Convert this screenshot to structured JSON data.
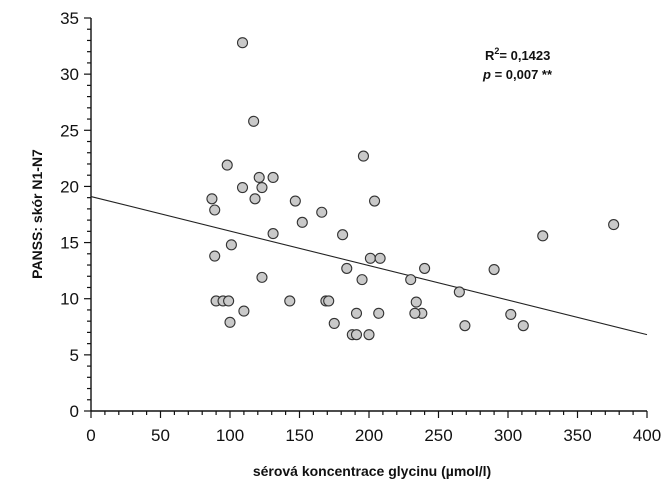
{
  "chart_data": {
    "type": "scatter",
    "xlabel": "sérová koncentrace glycinu (µmol/l)",
    "ylabel": "PANSS: skór N1-N7",
    "xlim": [
      0,
      400
    ],
    "ylim": [
      0,
      35
    ],
    "xticks": [
      "0",
      "50",
      "100",
      "150",
      "200",
      "250",
      "300",
      "350",
      "400"
    ],
    "yticks": [
      "0",
      "5",
      "10",
      "15",
      "20",
      "25",
      "30",
      "35"
    ],
    "grid": false,
    "annotations": {
      "r2_prefix": "R",
      "r2_sup": "2",
      "r2_value": "= 0,1423",
      "p_label": "p",
      "p_value": " = 0,007 **"
    },
    "trendline": {
      "x0": 0,
      "y0": 19.1,
      "x1": 400,
      "y1": 6.8
    },
    "points": [
      {
        "x": 109,
        "y": 32.8
      },
      {
        "x": 117,
        "y": 25.8
      },
      {
        "x": 98,
        "y": 21.9
      },
      {
        "x": 87,
        "y": 18.9
      },
      {
        "x": 89,
        "y": 17.9
      },
      {
        "x": 109,
        "y": 19.9
      },
      {
        "x": 121,
        "y": 20.8
      },
      {
        "x": 123,
        "y": 19.9
      },
      {
        "x": 118,
        "y": 18.9
      },
      {
        "x": 131,
        "y": 20.8
      },
      {
        "x": 147,
        "y": 18.7
      },
      {
        "x": 166,
        "y": 17.7
      },
      {
        "x": 196,
        "y": 22.7
      },
      {
        "x": 204,
        "y": 18.7
      },
      {
        "x": 101,
        "y": 14.8
      },
      {
        "x": 89,
        "y": 13.8
      },
      {
        "x": 131,
        "y": 15.8
      },
      {
        "x": 152,
        "y": 16.8
      },
      {
        "x": 181,
        "y": 15.7
      },
      {
        "x": 201,
        "y": 13.6
      },
      {
        "x": 208,
        "y": 13.6
      },
      {
        "x": 123,
        "y": 11.9
      },
      {
        "x": 184,
        "y": 12.7
      },
      {
        "x": 195,
        "y": 11.7
      },
      {
        "x": 90,
        "y": 9.8
      },
      {
        "x": 95,
        "y": 9.8
      },
      {
        "x": 99,
        "y": 9.8
      },
      {
        "x": 100,
        "y": 7.9
      },
      {
        "x": 110,
        "y": 8.9
      },
      {
        "x": 143,
        "y": 9.8
      },
      {
        "x": 169,
        "y": 9.8
      },
      {
        "x": 171,
        "y": 9.8
      },
      {
        "x": 175,
        "y": 7.8
      },
      {
        "x": 191,
        "y": 8.7
      },
      {
        "x": 188,
        "y": 6.8
      },
      {
        "x": 191,
        "y": 6.8
      },
      {
        "x": 200,
        "y": 6.8
      },
      {
        "x": 207,
        "y": 8.7
      },
      {
        "x": 230,
        "y": 11.7
      },
      {
        "x": 234,
        "y": 9.7
      },
      {
        "x": 238,
        "y": 8.7
      },
      {
        "x": 233,
        "y": 8.7
      },
      {
        "x": 240,
        "y": 12.7
      },
      {
        "x": 265,
        "y": 10.6
      },
      {
        "x": 269,
        "y": 7.6
      },
      {
        "x": 290,
        "y": 12.6
      },
      {
        "x": 302,
        "y": 8.6
      },
      {
        "x": 311,
        "y": 7.6
      },
      {
        "x": 325,
        "y": 15.6
      },
      {
        "x": 376,
        "y": 16.6
      }
    ]
  }
}
